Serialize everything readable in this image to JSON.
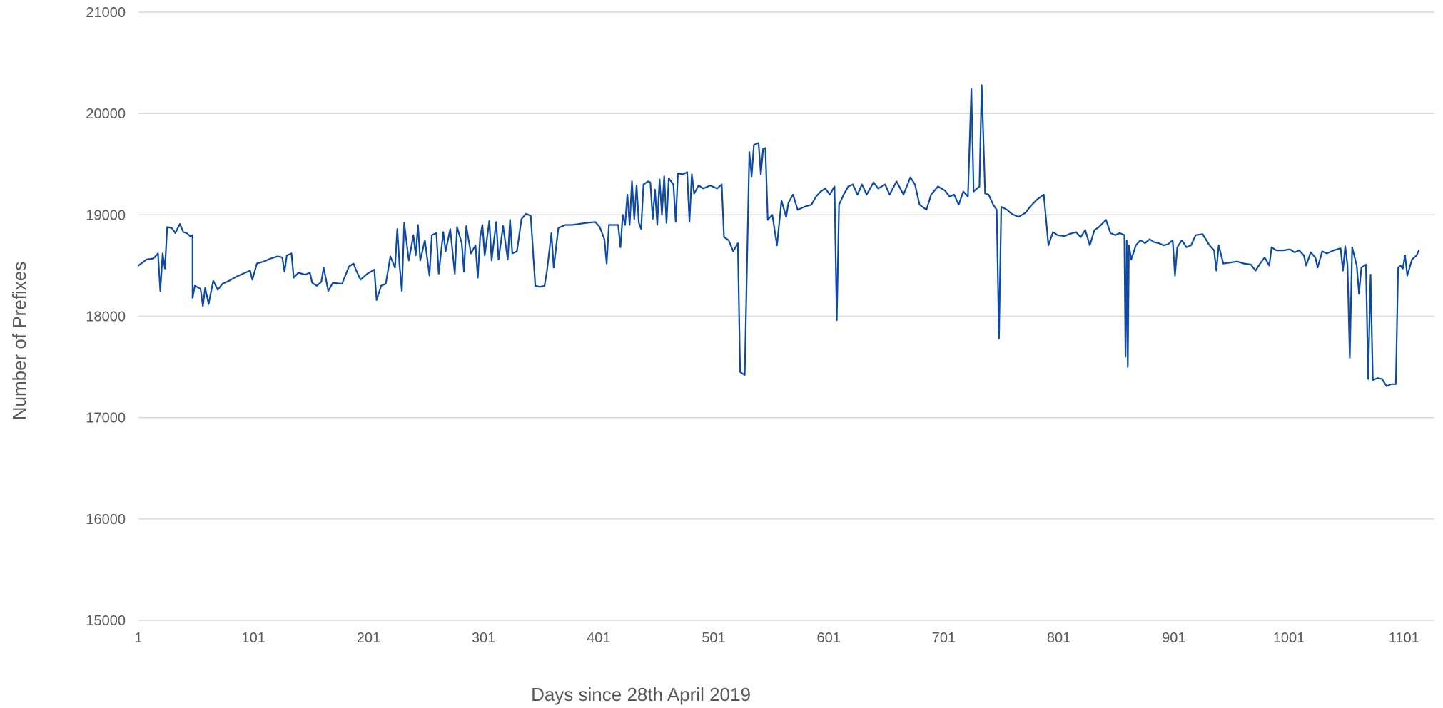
{
  "chart_data": {
    "type": "line",
    "title": "",
    "xlabel": "Days since 28th April 2019",
    "ylabel": "Number of Prefixes",
    "xlim": [
      1,
      1125
    ],
    "ylim": [
      15000,
      21000
    ],
    "grid": true,
    "x_ticks": [
      "1",
      "101",
      "201",
      "301",
      "401",
      "501",
      "601",
      "701",
      "801",
      "901",
      "1001",
      "1101"
    ],
    "y_ticks": [
      "15000",
      "16000",
      "17000",
      "18000",
      "19000",
      "20000",
      "21000"
    ],
    "series": [
      {
        "color": "#0b4aa8",
        "points": [
          [
            1,
            18500
          ],
          [
            8,
            18560
          ],
          [
            14,
            18570
          ],
          [
            18,
            18620
          ],
          [
            20,
            18250
          ],
          [
            22,
            18620
          ],
          [
            24,
            18470
          ],
          [
            26,
            18880
          ],
          [
            30,
            18870
          ],
          [
            33,
            18820
          ],
          [
            37,
            18910
          ],
          [
            40,
            18830
          ],
          [
            43,
            18820
          ],
          [
            46,
            18790
          ],
          [
            48,
            18800
          ],
          [
            48,
            18180
          ],
          [
            50,
            18300
          ],
          [
            55,
            18270
          ],
          [
            57,
            18100
          ],
          [
            59,
            18280
          ],
          [
            62,
            18120
          ],
          [
            66,
            18350
          ],
          [
            70,
            18260
          ],
          [
            74,
            18320
          ],
          [
            80,
            18350
          ],
          [
            86,
            18390
          ],
          [
            92,
            18420
          ],
          [
            98,
            18450
          ],
          [
            100,
            18360
          ],
          [
            104,
            18520
          ],
          [
            110,
            18540
          ],
          [
            116,
            18570
          ],
          [
            122,
            18590
          ],
          [
            126,
            18580
          ],
          [
            128,
            18440
          ],
          [
            130,
            18600
          ],
          [
            134,
            18620
          ],
          [
            136,
            18380
          ],
          [
            140,
            18430
          ],
          [
            146,
            18410
          ],
          [
            150,
            18430
          ],
          [
            152,
            18330
          ],
          [
            156,
            18300
          ],
          [
            160,
            18340
          ],
          [
            162,
            18480
          ],
          [
            166,
            18250
          ],
          [
            170,
            18330
          ],
          [
            178,
            18320
          ],
          [
            184,
            18490
          ],
          [
            188,
            18520
          ],
          [
            190,
            18460
          ],
          [
            194,
            18360
          ],
          [
            200,
            18420
          ],
          [
            206,
            18460
          ],
          [
            208,
            18160
          ],
          [
            212,
            18300
          ],
          [
            216,
            18320
          ],
          [
            220,
            18590
          ],
          [
            224,
            18480
          ],
          [
            226,
            18860
          ],
          [
            228,
            18500
          ],
          [
            230,
            18250
          ],
          [
            232,
            18920
          ],
          [
            236,
            18550
          ],
          [
            240,
            18800
          ],
          [
            242,
            18600
          ],
          [
            244,
            18900
          ],
          [
            246,
            18550
          ],
          [
            250,
            18750
          ],
          [
            254,
            18400
          ],
          [
            256,
            18800
          ],
          [
            260,
            18820
          ],
          [
            262,
            18420
          ],
          [
            266,
            18830
          ],
          [
            268,
            18640
          ],
          [
            272,
            18860
          ],
          [
            276,
            18420
          ],
          [
            278,
            18880
          ],
          [
            282,
            18720
          ],
          [
            284,
            18440
          ],
          [
            286,
            18890
          ],
          [
            290,
            18620
          ],
          [
            294,
            18700
          ],
          [
            296,
            18380
          ],
          [
            298,
            18780
          ],
          [
            300,
            18900
          ],
          [
            302,
            18600
          ],
          [
            306,
            18940
          ],
          [
            308,
            18550
          ],
          [
            312,
            18930
          ],
          [
            314,
            18560
          ],
          [
            318,
            18890
          ],
          [
            322,
            18560
          ],
          [
            324,
            18950
          ],
          [
            326,
            18620
          ],
          [
            330,
            18640
          ],
          [
            334,
            18960
          ],
          [
            338,
            19010
          ],
          [
            342,
            18990
          ],
          [
            346,
            18300
          ],
          [
            350,
            18290
          ],
          [
            354,
            18300
          ],
          [
            356,
            18440
          ],
          [
            360,
            18820
          ],
          [
            362,
            18480
          ],
          [
            366,
            18870
          ],
          [
            372,
            18900
          ],
          [
            378,
            18900
          ],
          [
            384,
            18910
          ],
          [
            390,
            18920
          ],
          [
            398,
            18930
          ],
          [
            402,
            18880
          ],
          [
            406,
            18760
          ],
          [
            408,
            18520
          ],
          [
            410,
            18900
          ],
          [
            414,
            18900
          ],
          [
            418,
            18900
          ],
          [
            420,
            18680
          ],
          [
            422,
            19000
          ],
          [
            424,
            18900
          ],
          [
            426,
            19200
          ],
          [
            428,
            18900
          ],
          [
            430,
            19330
          ],
          [
            432,
            18960
          ],
          [
            434,
            19290
          ],
          [
            436,
            18920
          ],
          [
            438,
            18860
          ],
          [
            440,
            19300
          ],
          [
            444,
            19330
          ],
          [
            446,
            19320
          ],
          [
            448,
            18960
          ],
          [
            450,
            19250
          ],
          [
            452,
            18900
          ],
          [
            454,
            19350
          ],
          [
            456,
            19000
          ],
          [
            458,
            19380
          ],
          [
            460,
            18920
          ],
          [
            462,
            19360
          ],
          [
            466,
            19300
          ],
          [
            468,
            18930
          ],
          [
            470,
            19410
          ],
          [
            474,
            19400
          ],
          [
            478,
            19420
          ],
          [
            480,
            18930
          ],
          [
            482,
            19400
          ],
          [
            484,
            19210
          ],
          [
            488,
            19290
          ],
          [
            492,
            19260
          ],
          [
            498,
            19290
          ],
          [
            504,
            19260
          ],
          [
            508,
            19300
          ],
          [
            510,
            18780
          ],
          [
            514,
            18750
          ],
          [
            518,
            18640
          ],
          [
            522,
            18720
          ],
          [
            524,
            17450
          ],
          [
            528,
            17420
          ],
          [
            530,
            18500
          ],
          [
            532,
            19620
          ],
          [
            534,
            19380
          ],
          [
            536,
            19690
          ],
          [
            540,
            19710
          ],
          [
            542,
            19400
          ],
          [
            544,
            19650
          ],
          [
            546,
            19660
          ],
          [
            548,
            18950
          ],
          [
            552,
            19000
          ],
          [
            556,
            18700
          ],
          [
            560,
            19140
          ],
          [
            564,
            18980
          ],
          [
            566,
            19120
          ],
          [
            570,
            19200
          ],
          [
            574,
            19050
          ],
          [
            580,
            19080
          ],
          [
            586,
            19100
          ],
          [
            590,
            19180
          ],
          [
            594,
            19230
          ],
          [
            598,
            19260
          ],
          [
            602,
            19200
          ],
          [
            606,
            19280
          ],
          [
            608,
            17960
          ],
          [
            610,
            19100
          ],
          [
            614,
            19200
          ],
          [
            618,
            19280
          ],
          [
            622,
            19300
          ],
          [
            626,
            19200
          ],
          [
            630,
            19300
          ],
          [
            634,
            19200
          ],
          [
            640,
            19320
          ],
          [
            644,
            19260
          ],
          [
            650,
            19300
          ],
          [
            654,
            19200
          ],
          [
            660,
            19330
          ],
          [
            666,
            19200
          ],
          [
            672,
            19370
          ],
          [
            676,
            19300
          ],
          [
            680,
            19100
          ],
          [
            686,
            19050
          ],
          [
            690,
            19200
          ],
          [
            696,
            19280
          ],
          [
            702,
            19240
          ],
          [
            706,
            19180
          ],
          [
            710,
            19200
          ],
          [
            714,
            19100
          ],
          [
            718,
            19230
          ],
          [
            722,
            19180
          ],
          [
            725,
            20240
          ],
          [
            727,
            19230
          ],
          [
            732,
            19280
          ],
          [
            734,
            20280
          ],
          [
            737,
            19210
          ],
          [
            740,
            19200
          ],
          [
            744,
            19100
          ],
          [
            747,
            19050
          ],
          [
            749,
            17780
          ],
          [
            751,
            19080
          ],
          [
            756,
            19050
          ],
          [
            760,
            19010
          ],
          [
            766,
            18980
          ],
          [
            772,
            19020
          ],
          [
            776,
            19080
          ],
          [
            782,
            19150
          ],
          [
            788,
            19200
          ],
          [
            792,
            18700
          ],
          [
            796,
            18830
          ],
          [
            800,
            18800
          ],
          [
            806,
            18790
          ],
          [
            810,
            18810
          ],
          [
            816,
            18830
          ],
          [
            820,
            18780
          ],
          [
            824,
            18850
          ],
          [
            828,
            18700
          ],
          [
            832,
            18850
          ],
          [
            836,
            18880
          ],
          [
            842,
            18950
          ],
          [
            846,
            18820
          ],
          [
            850,
            18800
          ],
          [
            854,
            18820
          ],
          [
            858,
            18800
          ],
          [
            859,
            17600
          ],
          [
            860,
            18750
          ],
          [
            861,
            17500
          ],
          [
            862,
            18700
          ],
          [
            864,
            18560
          ],
          [
            868,
            18700
          ],
          [
            872,
            18750
          ],
          [
            876,
            18720
          ],
          [
            880,
            18760
          ],
          [
            884,
            18730
          ],
          [
            888,
            18720
          ],
          [
            892,
            18700
          ],
          [
            896,
            18710
          ],
          [
            900,
            18750
          ],
          [
            902,
            18400
          ],
          [
            904,
            18680
          ],
          [
            908,
            18750
          ],
          [
            912,
            18680
          ],
          [
            916,
            18700
          ],
          [
            920,
            18800
          ],
          [
            926,
            18810
          ],
          [
            932,
            18700
          ],
          [
            936,
            18650
          ],
          [
            938,
            18450
          ],
          [
            940,
            18700
          ],
          [
            944,
            18520
          ],
          [
            950,
            18530
          ],
          [
            956,
            18540
          ],
          [
            962,
            18520
          ],
          [
            968,
            18510
          ],
          [
            972,
            18450
          ],
          [
            976,
            18520
          ],
          [
            980,
            18580
          ],
          [
            984,
            18500
          ],
          [
            986,
            18680
          ],
          [
            990,
            18650
          ],
          [
            996,
            18650
          ],
          [
            1002,
            18660
          ],
          [
            1006,
            18630
          ],
          [
            1010,
            18650
          ],
          [
            1014,
            18600
          ],
          [
            1016,
            18500
          ],
          [
            1020,
            18630
          ],
          [
            1024,
            18580
          ],
          [
            1026,
            18480
          ],
          [
            1030,
            18640
          ],
          [
            1034,
            18620
          ],
          [
            1040,
            18650
          ],
          [
            1046,
            18670
          ],
          [
            1048,
            18450
          ],
          [
            1050,
            18690
          ],
          [
            1052,
            18500
          ],
          [
            1054,
            17590
          ],
          [
            1056,
            18680
          ],
          [
            1060,
            18500
          ],
          [
            1062,
            18220
          ],
          [
            1064,
            18480
          ],
          [
            1068,
            18510
          ],
          [
            1070,
            17380
          ],
          [
            1072,
            18410
          ],
          [
            1074,
            17370
          ],
          [
            1078,
            17390
          ],
          [
            1082,
            17380
          ],
          [
            1086,
            17310
          ],
          [
            1090,
            17330
          ],
          [
            1094,
            17330
          ],
          [
            1096,
            18480
          ],
          [
            1098,
            18500
          ],
          [
            1100,
            18470
          ],
          [
            1102,
            18600
          ],
          [
            1104,
            18400
          ],
          [
            1108,
            18560
          ],
          [
            1112,
            18600
          ],
          [
            1114,
            18650
          ]
        ]
      }
    ]
  }
}
